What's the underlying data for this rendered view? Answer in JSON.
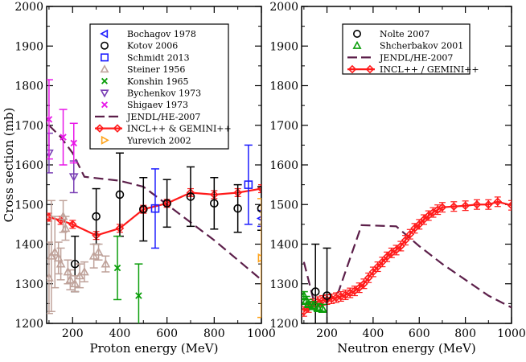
{
  "colors": {
    "blue": "#1c1cff",
    "black": "#000000",
    "tan": "#bfa29a",
    "green": "#0b9e0b",
    "purple": "#7a3fb5",
    "magenta": "#e817e8",
    "darkpurple": "#5c1f4a",
    "red": "#ff1a1a",
    "orange": "#ffa31a"
  },
  "chart_data": [
    {
      "id": "left",
      "type": "scatter",
      "title": "",
      "xlabel": "Proton energy (MeV)",
      "ylabel": "Cross section (mb)",
      "xlim": [
        90,
        1000
      ],
      "ylim": [
        1200,
        2000
      ],
      "xticks": [
        200,
        400,
        600,
        800,
        1000
      ],
      "yticks": [
        1200,
        1300,
        1400,
        1500,
        1600,
        1700,
        1800,
        1900,
        2000
      ],
      "series": [
        {
          "name": "Bochagov 1978",
          "marker": "triangle-left",
          "color": "blue",
          "points": [
            [
              1000,
              1465,
              20
            ]
          ]
        },
        {
          "name": "Kotov 2006",
          "marker": "circle",
          "color": "black",
          "points": [
            [
              210,
              1350,
              70
            ],
            [
              300,
              1470,
              70
            ],
            [
              400,
              1525,
              105
            ],
            [
              500,
              1488,
              80
            ],
            [
              600,
              1503,
              60
            ],
            [
              700,
              1520,
              75
            ],
            [
              800,
              1503,
              65
            ],
            [
              900,
              1490,
              60
            ],
            [
              1000,
              1490,
              55
            ]
          ]
        },
        {
          "name": "Schmidt 2013",
          "marker": "square",
          "color": "blue",
          "points": [
            [
              550,
              1490,
              100
            ],
            [
              945,
              1550,
              100
            ]
          ]
        },
        {
          "name": "Steiner 1956",
          "marker": "triangle-up",
          "color": "tan",
          "points": [
            [
              100,
              1315,
              90
            ],
            [
              110,
              1370,
              140
            ],
            [
              125,
              1380,
              90
            ],
            [
              140,
              1365,
              40
            ],
            [
              150,
              1350,
              40
            ],
            [
              160,
              1470,
              40
            ],
            [
              170,
              1440,
              30
            ],
            [
              180,
              1330,
              30
            ],
            [
              190,
              1310,
              25
            ],
            [
              210,
              1300,
              20
            ],
            [
              230,
              1320,
              30
            ],
            [
              250,
              1330,
              25
            ],
            [
              290,
              1370,
              30
            ],
            [
              310,
              1380,
              20
            ],
            [
              340,
              1350,
              20
            ]
          ]
        },
        {
          "name": "Konshin 1965",
          "marker": "x",
          "color": "green",
          "points": [
            [
              390,
              1340,
              80
            ],
            [
              480,
              1270,
              80
            ]
          ]
        },
        {
          "name": "Bychenkov 1973",
          "marker": "triangle-down",
          "color": "purple",
          "points": [
            [
              100,
              1630,
              50
            ],
            [
              205,
              1570,
              40
            ]
          ]
        },
        {
          "name": "Shigaev 1973",
          "marker": "x",
          "color": "magenta",
          "points": [
            [
              100,
              1715,
              100
            ],
            [
              160,
              1670,
              70
            ],
            [
              205,
              1655,
              50
            ]
          ]
        },
        {
          "name": "Yurevich 2002",
          "marker": "triangle-right",
          "color": "orange",
          "points": [
            [
              1000,
              1365,
              150
            ]
          ]
        }
      ],
      "lines": [
        {
          "name": "JENDL/HE-2007",
          "style": "dashed",
          "color": "darkpurple",
          "points": [
            [
              100,
              1700
            ],
            [
              150,
              1670
            ],
            [
              200,
              1630
            ],
            [
              250,
              1570
            ],
            [
              400,
              1560
            ],
            [
              500,
              1545
            ],
            [
              600,
              1500
            ],
            [
              700,
              1455
            ],
            [
              800,
              1410
            ],
            [
              900,
              1360
            ],
            [
              1000,
              1310
            ]
          ]
        },
        {
          "name": "INCL++ & GEMINI++",
          "style": "solid",
          "marker": "diamond",
          "color": "red",
          "points": [
            [
              100,
              1468,
              10
            ],
            [
              150,
              1460,
              10
            ],
            [
              200,
              1450,
              10
            ],
            [
              300,
              1422,
              10
            ],
            [
              400,
              1440,
              10
            ],
            [
              500,
              1488,
              10
            ],
            [
              600,
              1503,
              10
            ],
            [
              700,
              1530,
              10
            ],
            [
              800,
              1525,
              10
            ],
            [
              900,
              1530,
              10
            ],
            [
              1000,
              1540,
              10
            ]
          ]
        }
      ],
      "legend": {
        "position": "top-right",
        "entries": [
          {
            "label": "Bochagov 1978",
            "marker": "triangle-left",
            "color": "blue"
          },
          {
            "label": "Kotov 2006",
            "marker": "circle",
            "color": "black"
          },
          {
            "label": "Schmidt 2013",
            "marker": "square",
            "color": "blue"
          },
          {
            "label": "Steiner 1956",
            "marker": "triangle-up",
            "color": "tan"
          },
          {
            "label": "Konshin 1965",
            "marker": "x",
            "color": "green"
          },
          {
            "label": "Bychenkov 1973",
            "marker": "triangle-down",
            "color": "purple"
          },
          {
            "label": "Shigaev 1973",
            "marker": "x",
            "color": "magenta"
          },
          {
            "label": "JENDL/HE-2007",
            "marker": "dash",
            "color": "darkpurple"
          },
          {
            "label": "INCL++ & GEMINI++",
            "marker": "line-diamond",
            "color": "red"
          },
          {
            "label": "Yurevich 2002",
            "marker": "triangle-right",
            "color": "orange"
          }
        ]
      }
    },
    {
      "id": "right",
      "type": "scatter",
      "title": "",
      "xlabel": "Neutron energy (MeV)",
      "ylabel": "",
      "xlim": [
        90,
        1000
      ],
      "ylim": [
        1200,
        2000
      ],
      "xticks": [
        200,
        400,
        600,
        800,
        1000
      ],
      "yticks": [
        1200,
        1300,
        1400,
        1500,
        1600,
        1700,
        1800,
        1900,
        2000
      ],
      "series": [
        {
          "name": "Nolte 2007",
          "marker": "circle",
          "color": "black",
          "points": [
            [
              150,
              1280,
              120
            ],
            [
              200,
              1270,
              120
            ]
          ]
        },
        {
          "name": "Shcherbakov 2001",
          "marker": "triangle-up",
          "color": "green",
          "points": [
            [
              100,
              1270,
              10
            ],
            [
              110,
              1258,
              10
            ],
            [
              120,
              1250,
              10
            ],
            [
              140,
              1245,
              10
            ],
            [
              160,
              1240,
              10
            ],
            [
              180,
              1238,
              10
            ]
          ]
        }
      ],
      "lines": [
        {
          "name": "JENDL/HE-2007",
          "style": "dashed",
          "color": "darkpurple",
          "points": [
            [
              100,
              1355
            ],
            [
              150,
              1240
            ],
            [
              200,
              1255
            ],
            [
              250,
              1280
            ],
            [
              350,
              1448
            ],
            [
              500,
              1445
            ],
            [
              600,
              1395
            ],
            [
              700,
              1350
            ],
            [
              800,
              1310
            ],
            [
              900,
              1270
            ],
            [
              1000,
              1240
            ]
          ]
        },
        {
          "name": "INCL++ / GEMINI++",
          "style": "solid",
          "marker": "diamond",
          "color": "red",
          "points": [
            [
              100,
              1230,
              12
            ],
            [
              120,
              1240,
              12
            ],
            [
              140,
              1250,
              12
            ],
            [
              160,
              1255,
              12
            ],
            [
              180,
              1258,
              12
            ],
            [
              200,
              1260,
              12
            ],
            [
              220,
              1262,
              12
            ],
            [
              240,
              1265,
              12
            ],
            [
              260,
              1268,
              12
            ],
            [
              280,
              1272,
              12
            ],
            [
              300,
              1277,
              12
            ],
            [
              320,
              1282,
              12
            ],
            [
              340,
              1290,
              12
            ],
            [
              360,
              1300,
              12
            ],
            [
              380,
              1315,
              12
            ],
            [
              400,
              1330,
              12
            ],
            [
              420,
              1343,
              12
            ],
            [
              440,
              1355,
              12
            ],
            [
              460,
              1368,
              12
            ],
            [
              480,
              1378,
              12
            ],
            [
              500,
              1385,
              12
            ],
            [
              520,
              1395,
              12
            ],
            [
              540,
              1410,
              12
            ],
            [
              560,
              1425,
              12
            ],
            [
              580,
              1440,
              12
            ],
            [
              600,
              1450,
              12
            ],
            [
              620,
              1462,
              12
            ],
            [
              640,
              1472,
              12
            ],
            [
              660,
              1480,
              12
            ],
            [
              680,
              1487,
              12
            ],
            [
              700,
              1493,
              12
            ],
            [
              750,
              1495,
              12
            ],
            [
              800,
              1497,
              12
            ],
            [
              850,
              1500,
              12
            ],
            [
              900,
              1500,
              12
            ],
            [
              940,
              1507,
              12
            ],
            [
              1000,
              1498,
              12
            ]
          ]
        }
      ],
      "legend": {
        "position": "top-right",
        "entries": [
          {
            "label": "Nolte 2007",
            "marker": "circle",
            "color": "black"
          },
          {
            "label": "Shcherbakov 2001",
            "marker": "triangle-up",
            "color": "green"
          },
          {
            "label": "JENDL/HE-2007",
            "marker": "dash",
            "color": "darkpurple"
          },
          {
            "label": "INCL++ / GEMINI++",
            "marker": "line-diamond",
            "color": "red"
          }
        ]
      }
    }
  ]
}
